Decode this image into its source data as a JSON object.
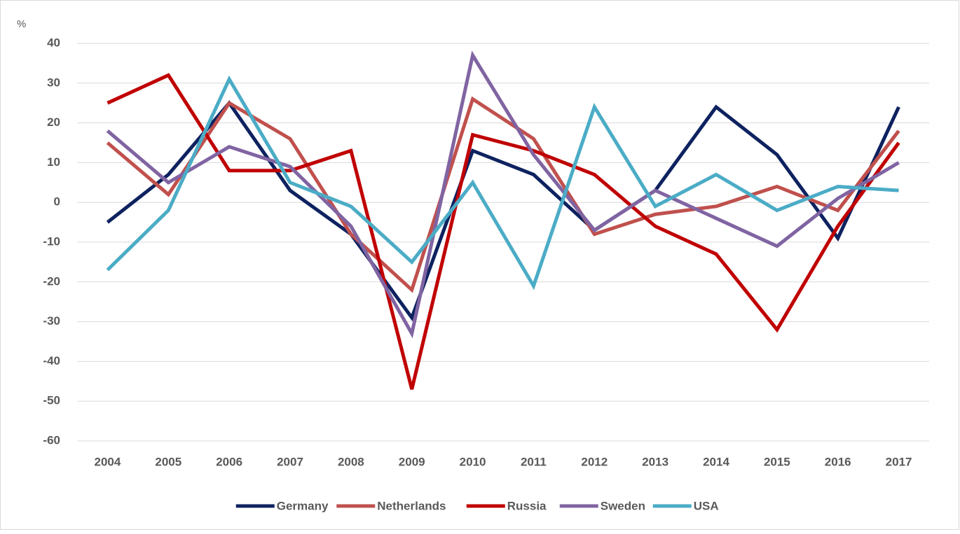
{
  "chart_data": {
    "type": "line",
    "y_label": "%",
    "categories": [
      "2004",
      "2005",
      "2006",
      "2007",
      "2008",
      "2009",
      "2010",
      "2011",
      "2012",
      "2013",
      "2014",
      "2015",
      "2016",
      "2017"
    ],
    "series": [
      {
        "name": "Germany",
        "color": "#0e2260",
        "values": [
          -5,
          7,
          25,
          3,
          -8,
          -29,
          13,
          7,
          -7,
          3,
          24,
          12,
          -9,
          24
        ]
      },
      {
        "name": "Netherlands",
        "color": "#c0504d",
        "values": [
          15,
          2,
          25,
          16,
          -8,
          -22,
          26,
          16,
          -8,
          -3,
          -1,
          4,
          -2,
          18
        ]
      },
      {
        "name": "Russia",
        "color": "#c00000",
        "values": [
          25,
          32,
          8,
          8,
          13,
          -47,
          17,
          13,
          7,
          -6,
          -13,
          -32,
          -6,
          15
        ]
      },
      {
        "name": "Sweden",
        "color": "#8064a2",
        "values": [
          18,
          5,
          14,
          9,
          -6,
          -33,
          37,
          12,
          -7,
          3,
          -4,
          -11,
          1,
          10
        ]
      },
      {
        "name": "USA",
        "color": "#4bacc6",
        "values": [
          -17,
          -2,
          31,
          5,
          -1,
          -15,
          5,
          -21,
          24,
          -1,
          7,
          -2,
          4,
          3
        ]
      }
    ],
    "ylim": [
      -60,
      40
    ],
    "yticks": [
      -60,
      -50,
      -40,
      -30,
      -20,
      -10,
      0,
      10,
      20,
      30,
      40
    ],
    "grid": true,
    "legend": "bottom"
  }
}
